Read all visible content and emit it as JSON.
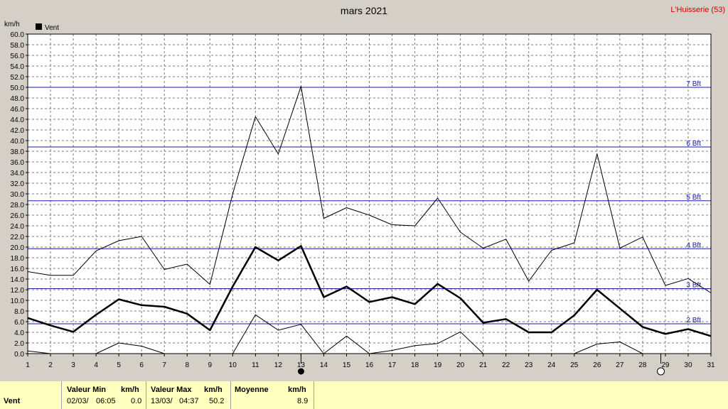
{
  "header": {
    "title": "mars 2021",
    "station": "L'Huisserie (53)"
  },
  "chart_data": {
    "type": "line",
    "title": "mars 2021",
    "ylabel": "km/h",
    "ylim": [
      0,
      60
    ],
    "yticks": [
      "0.0",
      "2.0",
      "4.0",
      "6.0",
      "8.0",
      "10.0",
      "12.0",
      "14.0",
      "16.0",
      "18.0",
      "20.0",
      "22.0",
      "24.0",
      "26.0",
      "28.0",
      "30.0",
      "32.0",
      "34.0",
      "36.0",
      "38.0",
      "40.0",
      "42.0",
      "44.0",
      "46.0",
      "48.0",
      "50.0",
      "52.0",
      "54.0",
      "56.0",
      "58.0",
      "60.0"
    ],
    "x": [
      1,
      2,
      3,
      4,
      5,
      6,
      7,
      8,
      9,
      10,
      11,
      12,
      13,
      14,
      15,
      16,
      17,
      18,
      19,
      20,
      21,
      22,
      23,
      24,
      25,
      26,
      27,
      28,
      29,
      30,
      31
    ],
    "grid": true,
    "legend": {
      "position": "top-left",
      "entries": [
        "Vent"
      ]
    },
    "series": [
      {
        "name": "Vent",
        "role": "max",
        "values": [
          15.4,
          14.7,
          14.7,
          19.3,
          21.2,
          22.0,
          15.8,
          16.8,
          13.0,
          30.0,
          44.5,
          37.5,
          50.2,
          25.4,
          27.4,
          26.0,
          24.2,
          24.0,
          29.2,
          22.8,
          19.8,
          21.5,
          13.6,
          19.4,
          20.8,
          37.5,
          19.8,
          21.9,
          12.8,
          14.1,
          11.4
        ]
      },
      {
        "name": "Vent",
        "role": "mean",
        "values": [
          6.7,
          5.3,
          4.1,
          7.3,
          10.2,
          9.1,
          8.8,
          7.5,
          4.4,
          12.6,
          20.0,
          17.5,
          20.2,
          10.6,
          12.6,
          9.7,
          10.6,
          9.3,
          13.1,
          10.4,
          5.8,
          6.5,
          4.0,
          4.0,
          7.2,
          12.0,
          8.5,
          5.0,
          3.7,
          4.6,
          3.3
        ]
      },
      {
        "name": "Vent",
        "role": "min",
        "values": [
          0.5,
          0.0,
          null,
          0.0,
          2.0,
          1.4,
          0.0,
          null,
          null,
          0.0,
          7.3,
          4.4,
          5.5,
          0.0,
          3.3,
          0.0,
          0.6,
          1.5,
          1.9,
          4.1,
          0.0,
          null,
          null,
          null,
          0.0,
          1.8,
          2.2,
          0.0,
          null,
          null,
          null
        ]
      }
    ],
    "beaufort": [
      {
        "label": "2 Bft",
        "value": 5.6
      },
      {
        "label": "3 Bft",
        "value": 12.2
      },
      {
        "label": "4 Bft",
        "value": 19.7
      },
      {
        "label": "5 Bft",
        "value": 28.7
      },
      {
        "label": "6 Bft",
        "value": 38.8
      },
      {
        "label": "7 Bft",
        "value": 50.0
      }
    ],
    "moon_phases": [
      {
        "day": 13,
        "phase": "new-moon"
      },
      {
        "day": 28.8,
        "phase": "full-moon"
      }
    ]
  },
  "footer": {
    "row_label": "Vent",
    "min": {
      "header": "Valeur Min",
      "unit": "km/h",
      "date": "02/03/",
      "time": "06:05",
      "value": "0.0"
    },
    "max": {
      "header": "Valeur Max",
      "unit": "km/h",
      "date": "13/03/",
      "time": "04:37",
      "value": "50.2"
    },
    "mean": {
      "header": "Moyenne",
      "unit": "km/h",
      "value": "8.9"
    }
  }
}
